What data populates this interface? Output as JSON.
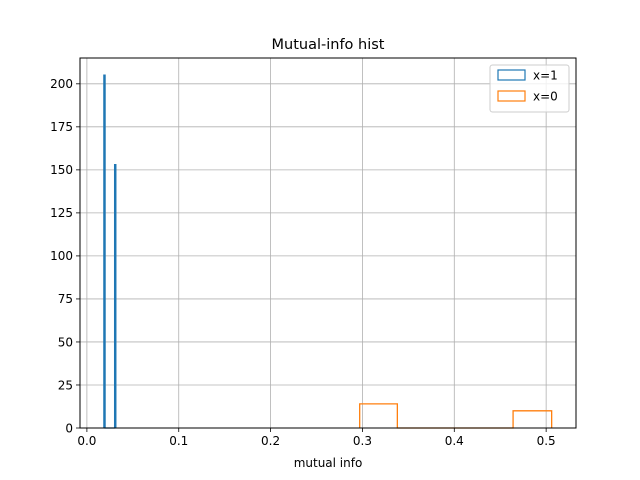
{
  "chart_data": {
    "type": "bar",
    "title": "Mutual-info hist",
    "xlabel": "mutual info",
    "ylabel": "",
    "xlim": [
      -0.0075,
      0.5325
    ],
    "ylim": [
      0,
      215
    ],
    "grid": true,
    "legend_position": "top-right",
    "xticks": [
      0.0,
      0.1,
      0.2,
      0.3,
      0.4,
      0.5
    ],
    "xtick_labels": [
      "0.0",
      "0.1",
      "0.2",
      "0.3",
      "0.4",
      "0.5"
    ],
    "yticks": [
      0,
      25,
      50,
      75,
      100,
      125,
      150,
      175,
      200
    ],
    "ytick_labels": [
      "0",
      "25",
      "50",
      "75",
      "100",
      "125",
      "150",
      "175",
      "200"
    ],
    "series": [
      {
        "name": "x=1",
        "color": "#1f77b4",
        "edges": [
          0.0185,
          0.0198,
          0.0211,
          0.0224,
          0.0237,
          0.025,
          0.0263,
          0.0276,
          0.0289,
          0.0302,
          0.0315
        ],
        "counts": [
          205,
          0,
          0,
          0,
          0,
          0,
          0,
          0,
          0,
          153
        ]
      },
      {
        "name": "x=0",
        "color": "#ff7f0e",
        "edges": [
          0.297,
          0.338,
          0.38,
          0.422,
          0.464,
          0.506
        ],
        "counts": [
          14,
          0,
          0,
          0,
          10
        ]
      }
    ]
  }
}
